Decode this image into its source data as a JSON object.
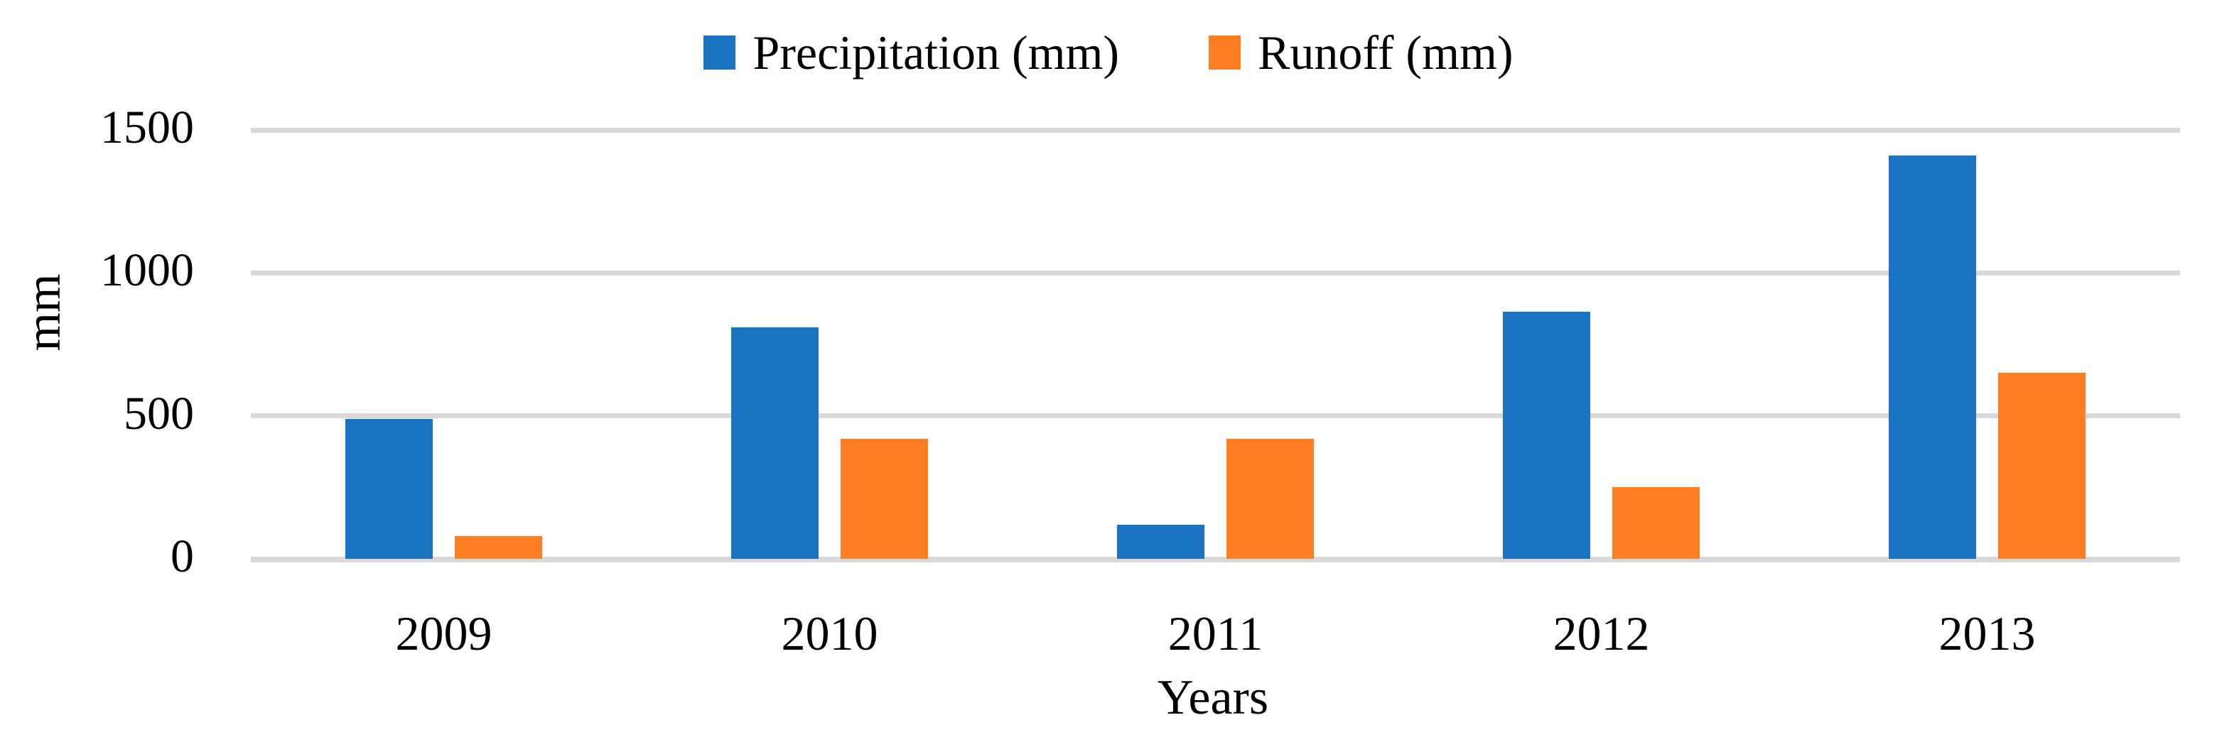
{
  "chart_data": {
    "type": "bar",
    "title": "",
    "categories": [
      "2009",
      "2010",
      "2011",
      "2012",
      "2013"
    ],
    "series": [
      {
        "name": "Precipitation (mm)",
        "slug": "precipitation",
        "color": "#1B73C4",
        "values": [
          490,
          810,
          120,
          865,
          1410
        ]
      },
      {
        "name": "Runoff (mm)",
        "slug": "runoff",
        "color": "#FD7E23",
        "values": [
          80,
          420,
          420,
          250,
          650
        ]
      }
    ],
    "xlabel": "Years",
    "ylabel": "mm",
    "ylim": [
      0,
      1500
    ],
    "yticks": [
      0,
      500,
      1000,
      1500
    ],
    "grid": "horizontal",
    "gridline_color": "#D9D9D9",
    "legend_position": "top-center",
    "background_color": "#FFFFFF",
    "text_color": "#000000"
  }
}
